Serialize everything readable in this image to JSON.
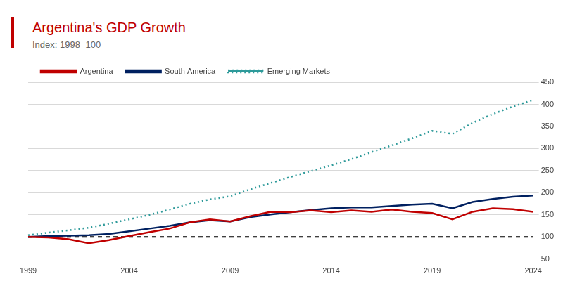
{
  "chart_data": {
    "type": "line",
    "title": "Argentina's GDP Growth",
    "subtitle": "Index: 1998=100",
    "categories": [
      "1999",
      null,
      null,
      null,
      null,
      "2004",
      null,
      null,
      null,
      null,
      "2009",
      null,
      null,
      null,
      null,
      "2014",
      null,
      null,
      null,
      null,
      "2019",
      null,
      null,
      null,
      null,
      "2024"
    ],
    "series": [
      {
        "name": "Argentina",
        "color": "#c00000",
        "line_style": "solid",
        "values": [
          100,
          99,
          95,
          86,
          93,
          102,
          111,
          119,
          133,
          140,
          135,
          147,
          157,
          156,
          160,
          156,
          160,
          157,
          162,
          157,
          154,
          140,
          157,
          165,
          163,
          157
        ]
      },
      {
        "name": "South America",
        "color": "#002060",
        "line_style": "solid",
        "values": [
          100,
          102,
          103,
          104,
          107,
          113,
          119,
          125,
          133,
          138,
          135,
          145,
          151,
          156,
          161,
          165,
          167,
          167,
          170,
          173,
          175,
          165,
          179,
          186,
          191,
          194
        ]
      },
      {
        "name": "Emerging Markets",
        "color": "#2e9a9a",
        "line_style": "dotted",
        "values": [
          104,
          110,
          115,
          121,
          130,
          140,
          150,
          162,
          175,
          185,
          192,
          208,
          222,
          236,
          249,
          262,
          276,
          292,
          307,
          323,
          340,
          333,
          358,
          378,
          395,
          410
        ]
      }
    ],
    "reference_line": 100,
    "ylim": [
      50,
      450
    ],
    "yticks": [
      50,
      100,
      150,
      200,
      250,
      300,
      350,
      400,
      450
    ],
    "grid": true,
    "legend": "top-left"
  }
}
